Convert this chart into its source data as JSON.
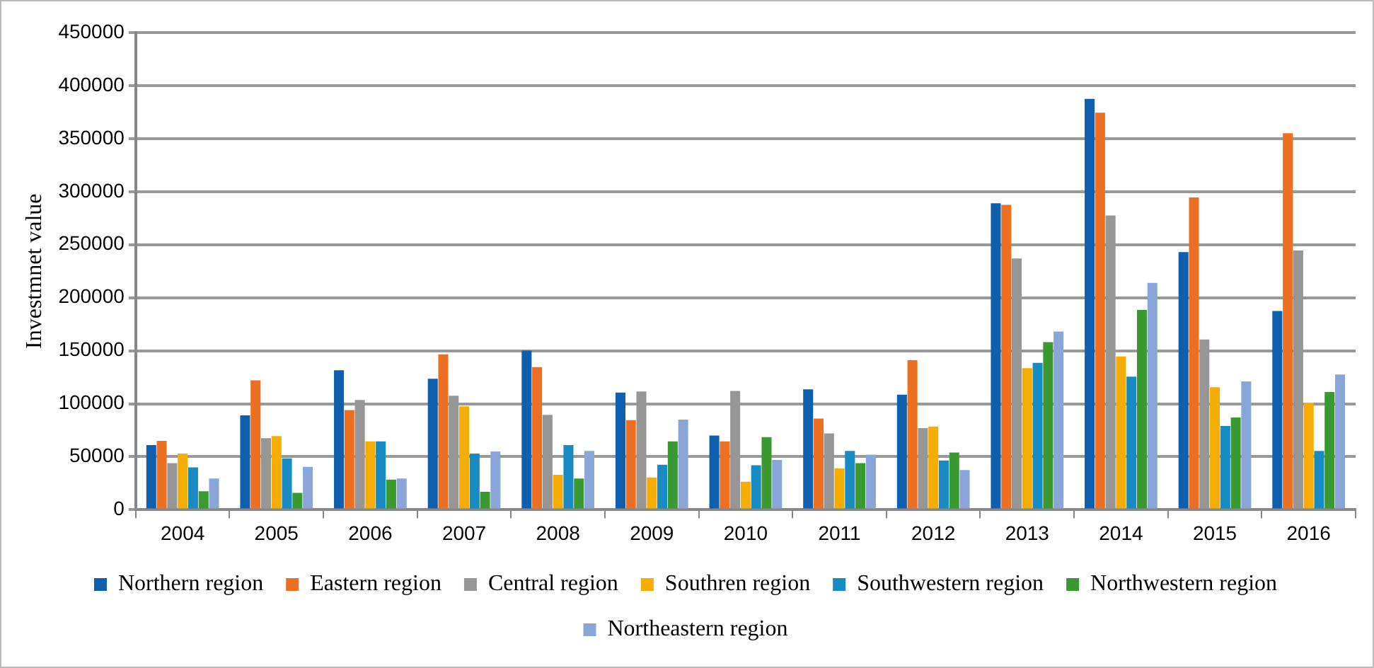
{
  "chart_data": {
    "type": "bar",
    "ylabel": "Investmnet value",
    "categories": [
      "2004",
      "2005",
      "2006",
      "2007",
      "2008",
      "2009",
      "2010",
      "2011",
      "2012",
      "2013",
      "2014",
      "2015",
      "2016"
    ],
    "series": [
      {
        "name": "Northern region",
        "color": "#0e5fae",
        "values": [
          61000,
          89000,
          131500,
          123500,
          150000,
          110500,
          70000,
          113500,
          108500,
          289000,
          387500,
          243000,
          187500
        ]
      },
      {
        "name": "Eastern region",
        "color": "#ed7022",
        "values": [
          65000,
          122000,
          94000,
          146500,
          134500,
          84500,
          64500,
          86000,
          141000,
          287500,
          374500,
          294500,
          355000
        ]
      },
      {
        "name": "Central region",
        "color": "#969696",
        "values": [
          44000,
          67500,
          103500,
          107500,
          89500,
          111500,
          112000,
          72000,
          77000,
          237000,
          277500,
          160500,
          244500
        ]
      },
      {
        "name": "Southren region",
        "color": "#f4ad00",
        "values": [
          53000,
          69500,
          64500,
          97500,
          33000,
          30500,
          26500,
          39000,
          78500,
          133500,
          144500,
          115500,
          101000
        ]
      },
      {
        "name": "Southwestern region",
        "color": "#178bc2",
        "values": [
          40000,
          48500,
          64500,
          53000,
          61000,
          42500,
          42000,
          55500,
          46500,
          138500,
          125500,
          79000,
          55500
        ]
      },
      {
        "name": "Northwestern region",
        "color": "#3b9932",
        "values": [
          17500,
          16000,
          28500,
          17000,
          29500,
          64500,
          68500,
          44000,
          54000,
          158000,
          188500,
          87000,
          111000
        ]
      },
      {
        "name": "Northeastern region",
        "color": "#8aa6d8",
        "values": [
          29500,
          40500,
          29500,
          55000,
          55500,
          85000,
          47000,
          52000,
          37500,
          168000,
          214000,
          121000,
          127500
        ]
      }
    ],
    "ylim": [
      0,
      450000
    ],
    "yticks": [
      0,
      50000,
      100000,
      150000,
      200000,
      250000,
      300000,
      350000,
      400000,
      450000
    ],
    "grid": "y",
    "legend": "bottom"
  }
}
